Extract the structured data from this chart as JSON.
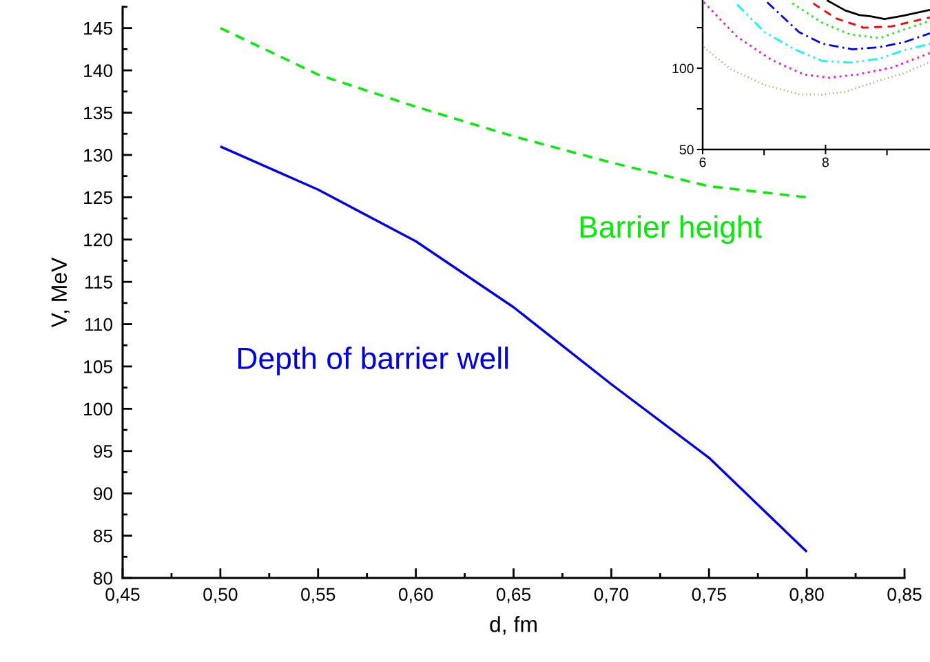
{
  "chart_data": [
    {
      "type": "line",
      "xlabel": "d, fm",
      "ylabel": "V, MeV",
      "xlim": [
        0.45,
        0.85
      ],
      "ylim": [
        80,
        147.5
      ],
      "xticks": [
        {
          "value": 0.45,
          "label": "0,45"
        },
        {
          "value": 0.5,
          "label": "0,50"
        },
        {
          "value": 0.55,
          "label": "0,55"
        },
        {
          "value": 0.6,
          "label": "0,60"
        },
        {
          "value": 0.65,
          "label": "0,65"
        },
        {
          "value": 0.7,
          "label": "0,70"
        },
        {
          "value": 0.75,
          "label": "0,75"
        },
        {
          "value": 0.8,
          "label": "0,80"
        },
        {
          "value": 0.85,
          "label": "0,85"
        }
      ],
      "yticks": [
        80,
        85,
        90,
        95,
        100,
        105,
        110,
        115,
        120,
        125,
        130,
        135,
        140,
        145
      ],
      "grid": false,
      "marker": "none",
      "series": [
        {
          "name": "Barrier height",
          "color": "#00ee00",
          "line_style": "dashed",
          "x": [
            0.5,
            0.55,
            0.6,
            0.65,
            0.7,
            0.75,
            0.8
          ],
          "values": [
            145,
            139.5,
            135.7,
            132.2,
            129.1,
            126.3,
            125.0
          ]
        },
        {
          "name": "Depth of barrier well",
          "color": "#0000ee",
          "line_style": "solid",
          "x": [
            0.5,
            0.55,
            0.6,
            0.65,
            0.7,
            0.75,
            0.8
          ],
          "values": [
            131,
            125.9,
            119.8,
            112.0,
            102.9,
            94.2,
            83.1
          ]
        }
      ]
    },
    {
      "type": "line",
      "xlim": [
        6,
        9.7
      ],
      "ylim": [
        50,
        142
      ],
      "xticks": [
        6,
        8,
        {
          "value": 7,
          "label": null
        },
        {
          "value": 9,
          "label": null
        }
      ],
      "yticks": [
        50,
        100,
        {
          "value": 75,
          "label": null
        },
        {
          "value": 125,
          "label": null
        }
      ],
      "grid": false,
      "marker": "none",
      "series": [
        {
          "color": "#000000",
          "line_style": "solid",
          "x": [
            8.02,
            8.32,
            8.55,
            8.73,
            8.96,
            9.26,
            9.7
          ],
          "values": [
            141.9,
            135.6,
            132.7,
            132.0,
            130.3,
            132.3,
            135.9
          ]
        },
        {
          "color": "#ff0000",
          "line_style": "dashed",
          "x": [
            7.8,
            8.17,
            8.62,
            9.07,
            9.7
          ],
          "values": [
            139.9,
            130.7,
            125.0,
            125.7,
            131.3
          ]
        },
        {
          "color": "#00ff00",
          "line_style": "dotted",
          "x": [
            7.46,
            7.95,
            8.4,
            8.88,
            9.26,
            9.7
          ],
          "values": [
            140.0,
            127.9,
            120.8,
            118.6,
            123.6,
            129.2
          ]
        },
        {
          "color": "#0000ff",
          "line_style": "dashdot",
          "x": [
            7.05,
            7.57,
            7.95,
            8.44,
            8.88,
            9.26,
            9.7
          ],
          "values": [
            140.6,
            122.2,
            115.1,
            111.6,
            113.0,
            115.8,
            121.5
          ]
        },
        {
          "color": "#00ffff",
          "line_style": "dashdotdot",
          "x": [
            6.56,
            7.01,
            7.5,
            7.95,
            8.4,
            8.88,
            9.26,
            9.7
          ],
          "values": [
            139.2,
            122.2,
            111.6,
            104.5,
            103.5,
            105.9,
            110.9,
            115.1
          ]
        },
        {
          "color": "#ff00ff",
          "line_style": "dotted",
          "x": [
            6.02,
            6.56,
            7.12,
            7.65,
            8.06,
            8.51,
            9.07,
            9.7
          ],
          "values": [
            140.6,
            119.4,
            105.2,
            96.1,
            94.2,
            96.1,
            100.3,
            109.4
          ]
        },
        {
          "color": "#b0b070",
          "line_style": "finedotted",
          "x": [
            6.02,
            6.45,
            7.01,
            7.57,
            7.95,
            8.32,
            8.88,
            9.26,
            9.7
          ],
          "values": [
            113.0,
            99.6,
            89.7,
            84.0,
            83.8,
            85.5,
            92.5,
            96.7,
            103.8
          ]
        }
      ]
    }
  ]
}
